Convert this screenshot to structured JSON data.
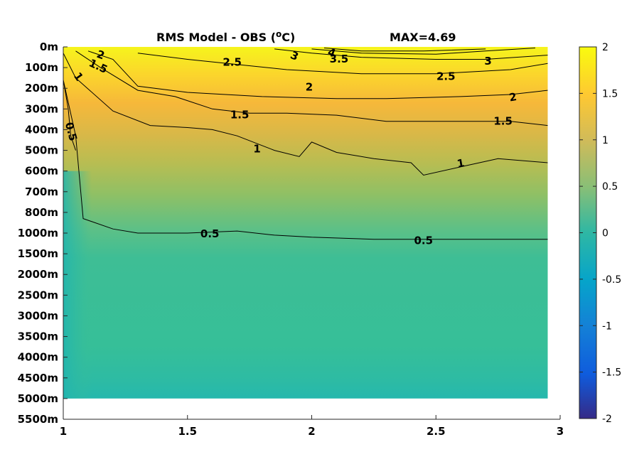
{
  "chart_data": {
    "type": "heatmap",
    "title": "RMS Model - OBS (",
    "title_unit_sup": "o",
    "title_unit": "C)",
    "max_label": "MAX=4.69",
    "x_ticks": [
      {
        "value": 1,
        "label": "1"
      },
      {
        "value": 1.5,
        "label": "1.5"
      },
      {
        "value": 2,
        "label": "2"
      },
      {
        "value": 2.5,
        "label": "2.5"
      },
      {
        "value": 3,
        "label": "3"
      }
    ],
    "xlim": [
      1,
      3
    ],
    "data_x_max": 2.95,
    "y_levels": [
      "0m",
      "100m",
      "200m",
      "300m",
      "400m",
      "500m",
      "600m",
      "700m",
      "800m",
      "1000m",
      "1500m",
      "2000m",
      "2500m",
      "3000m",
      "3500m",
      "4000m",
      "4500m",
      "5000m",
      "5500m"
    ],
    "data_last_level_index": 17,
    "colorbar": {
      "range": [
        -2,
        2
      ],
      "ticks": [
        {
          "value": 2,
          "label": "2"
        },
        {
          "value": 1.5,
          "label": "1.5"
        },
        {
          "value": 1,
          "label": "1"
        },
        {
          "value": 0.5,
          "label": "0.5"
        },
        {
          "value": 0,
          "label": "0"
        },
        {
          "value": -0.5,
          "label": "-0.5"
        },
        {
          "value": -1,
          "label": "-1"
        },
        {
          "value": -1.5,
          "label": "-1.5"
        },
        {
          "value": -2,
          "label": "-2"
        }
      ],
      "colormap": "parula"
    },
    "contours": [
      {
        "level": 0.5,
        "label": "0.5",
        "points": [
          [
            1.0,
            1.6
          ],
          [
            1.05,
            4.3
          ],
          [
            1.08,
            8.3
          ],
          [
            1.2,
            8.8
          ],
          [
            1.3,
            9.0
          ],
          [
            1.5,
            9.0
          ],
          [
            1.7,
            8.9
          ],
          [
            1.85,
            9.1
          ],
          [
            2.0,
            9.2
          ],
          [
            2.25,
            9.3
          ],
          [
            2.5,
            9.3
          ],
          [
            2.75,
            9.3
          ],
          [
            2.95,
            9.3
          ]
        ]
      },
      {
        "level": 0.5,
        "label": "0.5",
        "points": [
          [
            1.0,
            1.6
          ],
          [
            1.02,
            3.0
          ],
          [
            1.03,
            4.3
          ],
          [
            1.05,
            5.0
          ]
        ]
      },
      {
        "level": 1,
        "label": "1",
        "points": [
          [
            1.0,
            0.3
          ],
          [
            1.05,
            1.5
          ],
          [
            1.2,
            3.1
          ],
          [
            1.35,
            3.8
          ],
          [
            1.5,
            3.9
          ],
          [
            1.6,
            4.0
          ],
          [
            1.7,
            4.3
          ],
          [
            1.85,
            5.0
          ],
          [
            1.95,
            5.3
          ],
          [
            2.0,
            4.6
          ],
          [
            2.1,
            5.1
          ],
          [
            2.25,
            5.4
          ],
          [
            2.4,
            5.6
          ],
          [
            2.45,
            6.2
          ],
          [
            2.6,
            5.8
          ],
          [
            2.75,
            5.4
          ],
          [
            2.95,
            5.6
          ]
        ]
      },
      {
        "level": 1.5,
        "label": "1.5",
        "points": [
          [
            1.05,
            0.2
          ],
          [
            1.15,
            1.0
          ],
          [
            1.3,
            2.1
          ],
          [
            1.45,
            2.4
          ],
          [
            1.6,
            3.0
          ],
          [
            1.75,
            3.2
          ],
          [
            1.9,
            3.2
          ],
          [
            2.1,
            3.3
          ],
          [
            2.3,
            3.6
          ],
          [
            2.5,
            3.6
          ],
          [
            2.65,
            3.6
          ],
          [
            2.8,
            3.6
          ],
          [
            2.95,
            3.8
          ]
        ]
      },
      {
        "level": 2,
        "label": "2",
        "points": [
          [
            1.1,
            0.2
          ],
          [
            1.2,
            0.6
          ],
          [
            1.3,
            1.9
          ],
          [
            1.5,
            2.2
          ],
          [
            1.8,
            2.4
          ],
          [
            2.1,
            2.5
          ],
          [
            2.3,
            2.5
          ],
          [
            2.6,
            2.4
          ],
          [
            2.8,
            2.3
          ],
          [
            2.95,
            2.1
          ]
        ]
      },
      {
        "level": 2.5,
        "label": "2.5",
        "points": [
          [
            1.3,
            0.3
          ],
          [
            1.5,
            0.6
          ],
          [
            1.9,
            1.1
          ],
          [
            2.2,
            1.3
          ],
          [
            2.5,
            1.3
          ],
          [
            2.8,
            1.1
          ],
          [
            2.95,
            0.8
          ]
        ]
      },
      {
        "level": 3,
        "label": "3",
        "points": [
          [
            1.85,
            0.1
          ],
          [
            2.0,
            0.3
          ],
          [
            2.2,
            0.5
          ],
          [
            2.5,
            0.6
          ],
          [
            2.7,
            0.6
          ],
          [
            2.95,
            0.4
          ]
        ]
      },
      {
        "level": 3.5,
        "label": "3.5",
        "points": [
          [
            2.0,
            0.1
          ],
          [
            2.2,
            0.3
          ],
          [
            2.5,
            0.35
          ],
          [
            2.7,
            0.2
          ],
          [
            2.9,
            0.05
          ]
        ]
      },
      {
        "level": 4,
        "label": "4",
        "points": [
          [
            2.05,
            0.05
          ],
          [
            2.2,
            0.2
          ],
          [
            2.45,
            0.2
          ],
          [
            2.7,
            0.1
          ]
        ]
      }
    ],
    "contour_labels": [
      {
        "label": "0.5",
        "x": 1.03,
        "y": 4.1,
        "rotate": 75
      },
      {
        "label": "0.5",
        "x": 1.59,
        "y": 9.05,
        "rotate": 0
      },
      {
        "label": "0.5",
        "x": 2.45,
        "y": 9.38,
        "rotate": 0
      },
      {
        "label": "1",
        "x": 1.06,
        "y": 1.45,
        "rotate": 55
      },
      {
        "label": "1",
        "x": 1.78,
        "y": 4.95,
        "rotate": 0
      },
      {
        "label": "1",
        "x": 2.6,
        "y": 5.65,
        "rotate": -10
      },
      {
        "label": "1.5",
        "x": 1.14,
        "y": 0.95,
        "rotate": 25
      },
      {
        "label": "1.5",
        "x": 1.71,
        "y": 3.3,
        "rotate": 0
      },
      {
        "label": "1.5",
        "x": 2.77,
        "y": 3.6,
        "rotate": 0
      },
      {
        "label": "2",
        "x": 1.15,
        "y": 0.4,
        "rotate": 20
      },
      {
        "label": "2",
        "x": 1.99,
        "y": 1.95,
        "rotate": 0
      },
      {
        "label": "2",
        "x": 2.81,
        "y": 2.45,
        "rotate": -10
      },
      {
        "label": "2.5",
        "x": 1.68,
        "y": 0.75,
        "rotate": 0
      },
      {
        "label": "2.5",
        "x": 2.54,
        "y": 1.45,
        "rotate": 0
      },
      {
        "label": "3",
        "x": 1.93,
        "y": 0.45,
        "rotate": 25
      },
      {
        "label": "3",
        "x": 2.71,
        "y": 0.7,
        "rotate": 0
      },
      {
        "label": "3.5",
        "x": 2.11,
        "y": 0.6,
        "rotate": 0
      },
      {
        "label": "4",
        "x": 2.08,
        "y": 0.3,
        "rotate": 20
      }
    ],
    "value_field_profile": {
      "description_levels_index": [
        0,
        1,
        2,
        3,
        4,
        5,
        6,
        7,
        8,
        9,
        10,
        12,
        14,
        16,
        17
      ],
      "values_at_x1_5": [
        2.6,
        2.4,
        1.9,
        1.55,
        1.25,
        1.0,
        0.85,
        0.75,
        0.65,
        0.5,
        0.42,
        0.42,
        0.42,
        0.4,
        0.3
      ]
    }
  }
}
